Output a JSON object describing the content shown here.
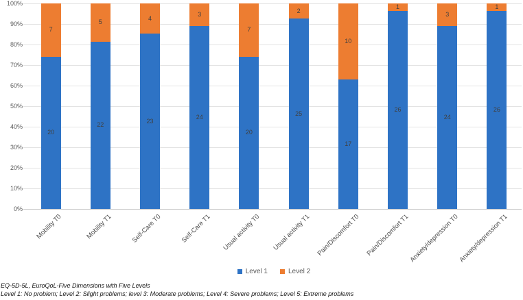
{
  "chart_data": {
    "type": "bar",
    "variant": "100-percent-stacked-column",
    "categories": [
      "Mobility T0",
      "Mobility T1",
      "Self-Care T0",
      "Self-Care T1",
      "Usual activity T0",
      "Usual activity T1",
      "Pain/Discomfort T0",
      "Pain/Discomfort T1",
      "Anxiety/depression T0",
      "Anxiety/depression T1"
    ],
    "series": [
      {
        "name": "Level 1",
        "color": "#2E73C5",
        "values": [
          20,
          22,
          23,
          24,
          20,
          25,
          17,
          26,
          24,
          26
        ]
      },
      {
        "name": "Level 2",
        "color": "#ED7D31",
        "values": [
          7,
          5,
          4,
          3,
          7,
          2,
          10,
          1,
          3,
          1
        ]
      }
    ],
    "stack_total": 27,
    "y_axis": {
      "min": 0,
      "max": 100,
      "step": 10,
      "ticks": [
        "0%",
        "10%",
        "20%",
        "30%",
        "40%",
        "50%",
        "60%",
        "70%",
        "80%",
        "90%",
        "100%"
      ]
    },
    "grid": true,
    "legend_position": "bottom"
  },
  "footnotes": {
    "line1": "EQ-5D-5L, EuroQoL-Five Dimensions with Five Levels",
    "line2": "Level 1: No problem; Level 2: Slight problems; level 3: Moderate problems; Level 4: Severe problems; Level 5: Extreme problems"
  }
}
